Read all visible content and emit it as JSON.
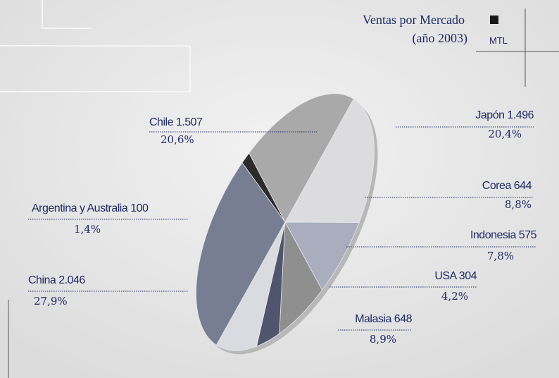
{
  "chart_data": {
    "type": "pie",
    "title": "Ventas por Mercado",
    "subtitle": "(año 2003)",
    "unit": "MTL",
    "categories": [
      "Japón",
      "Corea",
      "Indonesia",
      "USA",
      "Malasia",
      "China",
      "Argentina y Australia",
      "Chile"
    ],
    "values": [
      1496,
      644,
      575,
      304,
      648,
      2046,
      100,
      1507
    ],
    "value_labels": [
      "1.496",
      "644",
      "575",
      "304",
      "648",
      "2.046",
      "100",
      "1.507"
    ],
    "percent_labels": [
      "20,4%",
      "8,8%",
      "7,8%",
      "4,2%",
      "8,9%",
      "27,9%",
      "1,4%",
      "20,6%"
    ],
    "colors": [
      "#dcdcde",
      "#a9adbd",
      "#8f8f90",
      "#50546f",
      "#dadbe0",
      "#777d92",
      "#2b2b2b",
      "#a9a9a9"
    ]
  }
}
